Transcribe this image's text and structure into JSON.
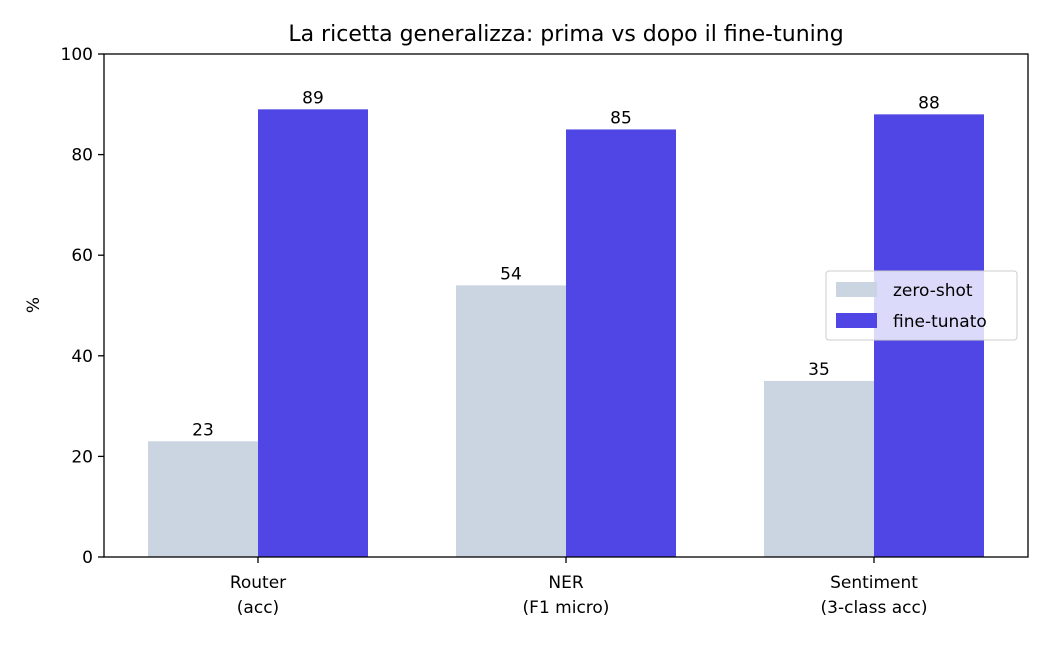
{
  "chart_data": {
    "type": "bar",
    "title": "La ricetta generalizza: prima vs dopo il fine-tuning",
    "xlabel": "",
    "ylabel": "%",
    "ylim": [
      0,
      100
    ],
    "yticks": [
      0,
      20,
      40,
      60,
      80,
      100
    ],
    "categories": [
      [
        "Router",
        "(acc)"
      ],
      [
        "NER",
        "(F1 micro)"
      ],
      [
        "Sentiment",
        "(3-class acc)"
      ]
    ],
    "series": [
      {
        "name": "zero-shot",
        "color": "#cbd5e1",
        "values": [
          23,
          54,
          35
        ]
      },
      {
        "name": "fine-tunato",
        "color": "#4f46e5",
        "values": [
          89,
          85,
          88
        ]
      }
    ],
    "legend_position": "center-right",
    "grid": false
  }
}
